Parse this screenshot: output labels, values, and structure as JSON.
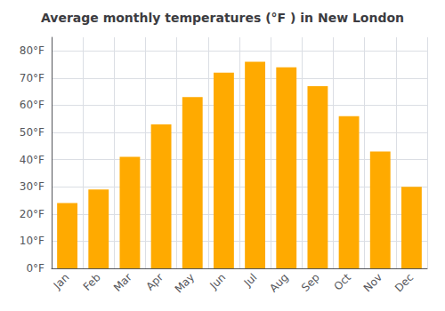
{
  "chart_data": {
    "type": "bar",
    "title": "Average monthly temperatures (°F ) in New London",
    "categories": [
      "Jan",
      "Feb",
      "Mar",
      "Apr",
      "May",
      "Jun",
      "Jul",
      "Aug",
      "Sep",
      "Oct",
      "Nov",
      "Dec"
    ],
    "values": [
      24,
      29,
      41,
      53,
      63,
      72,
      76,
      74,
      67,
      56,
      43,
      30
    ],
    "color": "#FFAA00",
    "ylim": [
      0,
      85
    ],
    "yticks": [
      {
        "value": 0,
        "label": "0°F"
      },
      {
        "value": 10,
        "label": "10°F"
      },
      {
        "value": 20,
        "label": "20°F"
      },
      {
        "value": 30,
        "label": "30°F"
      },
      {
        "value": 40,
        "label": "40°F"
      },
      {
        "value": 50,
        "label": "50°F"
      },
      {
        "value": 60,
        "label": "60°F"
      },
      {
        "value": 70,
        "label": "70°F"
      },
      {
        "value": 80,
        "label": "80°F"
      }
    ],
    "grid": true
  }
}
